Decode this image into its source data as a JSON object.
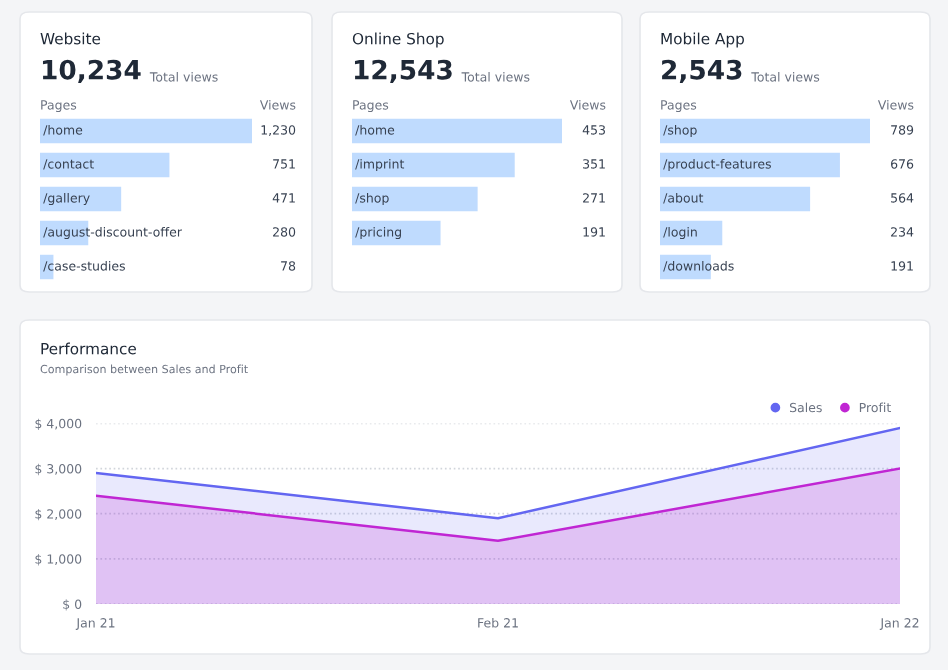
{
  "chart_data": [
    {
      "type": "bar",
      "orientation": "horizontal",
      "title": "Website",
      "subtitle": "10,234",
      "annotations": [
        "Total views",
        "Pages",
        "Views"
      ],
      "categories": [
        "/home",
        "/contact",
        "/gallery",
        "/august-discount-offer",
        "/case-studies"
      ],
      "values": [
        1230,
        751,
        471,
        280,
        78
      ],
      "value_labels": [
        "1,230",
        "751",
        "471",
        "280",
        "78"
      ],
      "color": "#bfdbfe"
    },
    {
      "type": "bar",
      "orientation": "horizontal",
      "title": "Online Shop",
      "subtitle": "12,543",
      "annotations": [
        "Total views",
        "Pages",
        "Views"
      ],
      "categories": [
        "/home",
        "/imprint",
        "/shop",
        "/pricing"
      ],
      "values": [
        453,
        351,
        271,
        191
      ],
      "value_labels": [
        "453",
        "351",
        "271",
        "191"
      ],
      "color": "#bfdbfe"
    },
    {
      "type": "bar",
      "orientation": "horizontal",
      "title": "Mobile App",
      "subtitle": "2,543",
      "annotations": [
        "Total views",
        "Pages",
        "Views"
      ],
      "categories": [
        "/shop",
        "/product-features",
        "/about",
        "/login",
        "/downloads"
      ],
      "values": [
        789,
        676,
        564,
        234,
        191
      ],
      "value_labels": [
        "789",
        "676",
        "564",
        "234",
        "191"
      ],
      "color": "#bfdbfe"
    },
    {
      "type": "area",
      "title": "Performance",
      "subtitle": "Comparison between Sales and Profit",
      "categories": [
        "Jan 21",
        "Feb 21",
        "Jan 22"
      ],
      "series": [
        {
          "name": "Sales",
          "color": "#6366f1",
          "values": [
            2900,
            1900,
            3900
          ]
        },
        {
          "name": "Profit",
          "color": "#c026d3",
          "values": [
            2400,
            1400,
            3000
          ]
        }
      ],
      "ylim": [
        0,
        4000
      ],
      "yticks": [
        {
          "value": 0,
          "label": "$ 0"
        },
        {
          "value": 1000,
          "label": "$ 1,000"
        },
        {
          "value": 2000,
          "label": "$ 2,000"
        },
        {
          "value": 3000,
          "label": "$ 3,000"
        },
        {
          "value": 4000,
          "label": "$ 4,000"
        }
      ],
      "grid": "y",
      "legend": "top right",
      "marker": "none",
      "line_style": "solid"
    }
  ]
}
